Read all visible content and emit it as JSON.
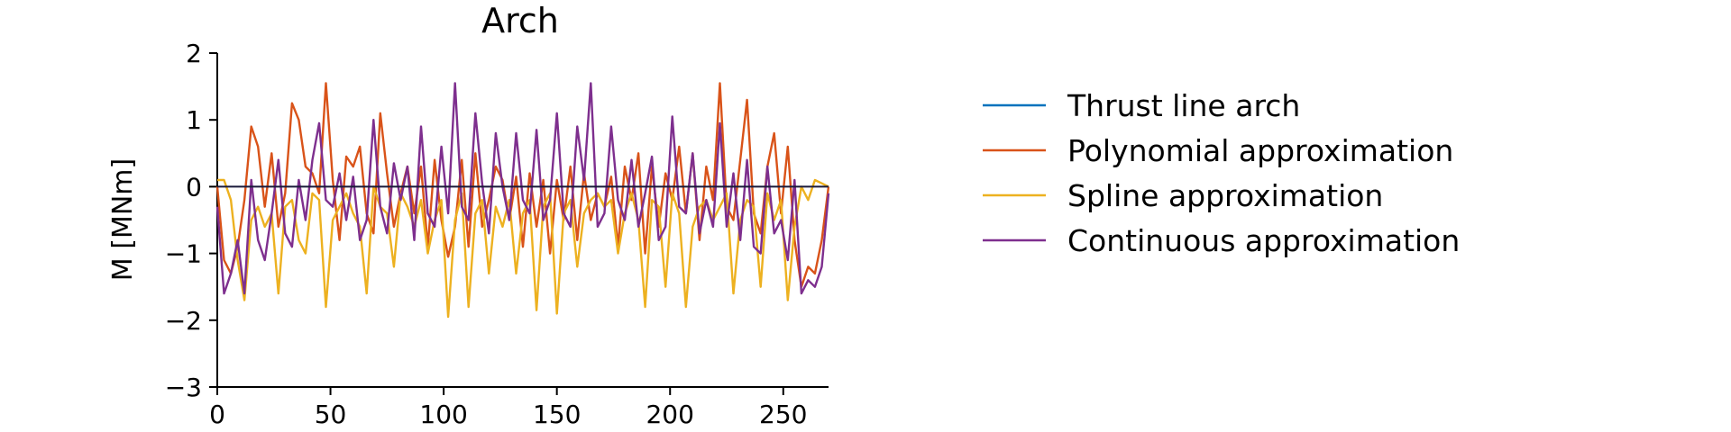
{
  "chart_data": {
    "type": "line",
    "title": "Arch",
    "xlabel": "",
    "ylabel": "M [MNm]",
    "xlim": [
      0,
      270
    ],
    "ylim": [
      -3,
      2
    ],
    "xticks": [
      0,
      50,
      100,
      150,
      200,
      250
    ],
    "yticks": [
      -3,
      -2,
      -1,
      0,
      1,
      2
    ],
    "ytick_labels": [
      "−3",
      "−2",
      "−1",
      "0",
      "1",
      "2"
    ],
    "grid": false,
    "legend_position": "right",
    "series": [
      {
        "name": "Thrust line arch",
        "color": "#0072BD",
        "x": [
          0,
          270
        ],
        "y": [
          0,
          0
        ]
      },
      {
        "name": "Polynomial approximation",
        "color": "#D95319",
        "x": [
          0,
          3,
          6,
          9,
          12,
          15,
          18,
          21,
          24,
          27,
          30,
          33,
          36,
          39,
          42,
          45,
          48,
          51,
          54,
          57,
          60,
          63,
          66,
          69,
          72,
          75,
          78,
          81,
          84,
          87,
          90,
          93,
          96,
          99,
          102,
          105,
          108,
          111,
          114,
          117,
          120,
          123,
          126,
          129,
          132,
          135,
          138,
          141,
          144,
          147,
          150,
          153,
          156,
          159,
          162,
          165,
          168,
          171,
          174,
          177,
          180,
          183,
          186,
          189,
          192,
          195,
          198,
          201,
          204,
          207,
          210,
          213,
          216,
          219,
          222,
          225,
          228,
          231,
          234,
          237,
          240,
          243,
          246,
          249,
          252,
          255,
          258,
          261,
          264,
          267,
          270
        ],
        "y": [
          0,
          -1.1,
          -1.3,
          -0.9,
          -0.2,
          0.9,
          0.6,
          -0.3,
          0.5,
          -0.6,
          -0.1,
          1.25,
          1.0,
          0.3,
          0.2,
          -0.1,
          1.55,
          0.1,
          -0.8,
          0.45,
          0.3,
          0.6,
          -0.4,
          -0.7,
          1.1,
          0.2,
          -0.6,
          -0.1,
          0.3,
          -0.4,
          0.3,
          -0.9,
          0.4,
          -0.5,
          -1.05,
          -0.6,
          0.4,
          -0.9,
          0.5,
          -0.6,
          -0.2,
          0.3,
          0.1,
          -0.5,
          0.15,
          -0.9,
          0.2,
          -0.6,
          0.1,
          -1.0,
          0.1,
          -0.5,
          0.3,
          -0.8,
          0.2,
          -0.5,
          -0.1,
          -0.3,
          0.15,
          -0.9,
          0.3,
          -0.2,
          0.5,
          -1.0,
          0.3,
          -0.6,
          0.2,
          -0.2,
          0.6,
          -0.4,
          0.5,
          -0.8,
          0.3,
          -0.2,
          1.55,
          -0.3,
          -0.5,
          0.4,
          1.3,
          -0.4,
          -0.7,
          0.3,
          0.8,
          -0.4,
          0.6,
          -0.8,
          -1.5,
          -1.2,
          -1.3,
          -0.8,
          0
        ],
        "note": ""
      },
      {
        "name": "Spline approximation",
        "color": "#EDB120",
        "x": [
          0,
          3,
          6,
          9,
          12,
          15,
          18,
          21,
          24,
          27,
          30,
          33,
          36,
          39,
          42,
          45,
          48,
          51,
          54,
          57,
          60,
          63,
          66,
          69,
          72,
          75,
          78,
          81,
          84,
          87,
          90,
          93,
          96,
          99,
          102,
          105,
          108,
          111,
          114,
          117,
          120,
          123,
          126,
          129,
          132,
          135,
          138,
          141,
          144,
          147,
          150,
          153,
          156,
          159,
          162,
          165,
          168,
          171,
          174,
          177,
          180,
          183,
          186,
          189,
          192,
          195,
          198,
          201,
          204,
          207,
          210,
          213,
          216,
          219,
          222,
          225,
          228,
          231,
          234,
          237,
          240,
          243,
          246,
          249,
          252,
          255,
          258,
          261,
          264,
          267,
          270
        ],
        "y": [
          0.1,
          0.1,
          -0.2,
          -1.1,
          -1.7,
          -0.5,
          -0.3,
          -0.6,
          -0.4,
          -1.6,
          -0.3,
          -0.2,
          -0.8,
          -1.0,
          -0.1,
          -0.2,
          -1.8,
          -0.5,
          -0.3,
          -0.1,
          -0.4,
          -0.6,
          -1.6,
          0.0,
          -0.3,
          -0.4,
          -1.2,
          -0.1,
          -0.3,
          -0.6,
          -0.2,
          -1.0,
          -0.5,
          -0.2,
          -1.95,
          -0.5,
          -0.1,
          -1.8,
          -0.4,
          -0.2,
          -1.3,
          -0.3,
          -0.6,
          -0.2,
          -1.3,
          -0.4,
          -0.2,
          -1.85,
          -0.3,
          -0.1,
          -1.9,
          -0.4,
          -0.2,
          -1.2,
          -0.4,
          -0.2,
          -0.1,
          -0.3,
          -0.2,
          -1.0,
          -0.4,
          -0.1,
          -0.5,
          -1.8,
          -0.2,
          -0.3,
          -1.5,
          -0.1,
          -0.4,
          -1.8,
          -0.6,
          -0.3,
          -0.2,
          -0.5,
          -0.3,
          -0.1,
          -1.6,
          -0.5,
          -0.2,
          -0.3,
          -1.5,
          -0.1,
          -0.5,
          -0.2,
          -1.7,
          -0.6,
          0.0,
          -0.2,
          0.1,
          0.05,
          0
        ],
        "note": ""
      },
      {
        "name": "Continuous approximation",
        "color": "#7E2F8E",
        "x": [
          0,
          3,
          6,
          9,
          12,
          15,
          18,
          21,
          24,
          27,
          30,
          33,
          36,
          39,
          42,
          45,
          48,
          51,
          54,
          57,
          60,
          63,
          66,
          69,
          72,
          75,
          78,
          81,
          84,
          87,
          90,
          93,
          96,
          99,
          102,
          105,
          108,
          111,
          114,
          117,
          120,
          123,
          126,
          129,
          132,
          135,
          138,
          141,
          144,
          147,
          150,
          153,
          156,
          159,
          162,
          165,
          168,
          171,
          174,
          177,
          180,
          183,
          186,
          189,
          192,
          195,
          198,
          201,
          204,
          207,
          210,
          213,
          216,
          219,
          222,
          225,
          228,
          231,
          234,
          237,
          240,
          243,
          246,
          249,
          252,
          255,
          258,
          261,
          264,
          267,
          270
        ],
        "y": [
          -0.3,
          -1.6,
          -1.3,
          -0.8,
          -1.6,
          0.1,
          -0.8,
          -1.1,
          -0.4,
          0.4,
          -0.7,
          -0.9,
          0.1,
          -0.5,
          0.4,
          0.95,
          -0.2,
          -0.3,
          0.2,
          -0.5,
          0.15,
          -0.8,
          -0.5,
          1.0,
          -0.3,
          -0.7,
          0.35,
          -0.2,
          0.3,
          -0.8,
          0.9,
          -0.4,
          -0.6,
          0.6,
          -0.4,
          1.55,
          -0.3,
          -0.5,
          1.1,
          0.05,
          -0.7,
          0.8,
          0.0,
          -0.5,
          0.8,
          -0.2,
          -0.4,
          0.85,
          -0.5,
          -0.2,
          1.1,
          -0.4,
          -0.6,
          0.9,
          0.1,
          1.55,
          -0.6,
          -0.4,
          0.9,
          -0.2,
          -0.5,
          0.4,
          -0.6,
          -0.1,
          0.45,
          -0.8,
          -0.6,
          1.05,
          -0.3,
          -0.4,
          0.5,
          -0.7,
          -0.2,
          -0.6,
          0.95,
          -0.6,
          0.2,
          -0.8,
          0.4,
          -0.9,
          -1.0,
          0.3,
          -0.7,
          -0.5,
          -1.1,
          0.1,
          -1.6,
          -1.4,
          -1.5,
          -1.2,
          -0.1
        ],
        "note": ""
      }
    ]
  }
}
